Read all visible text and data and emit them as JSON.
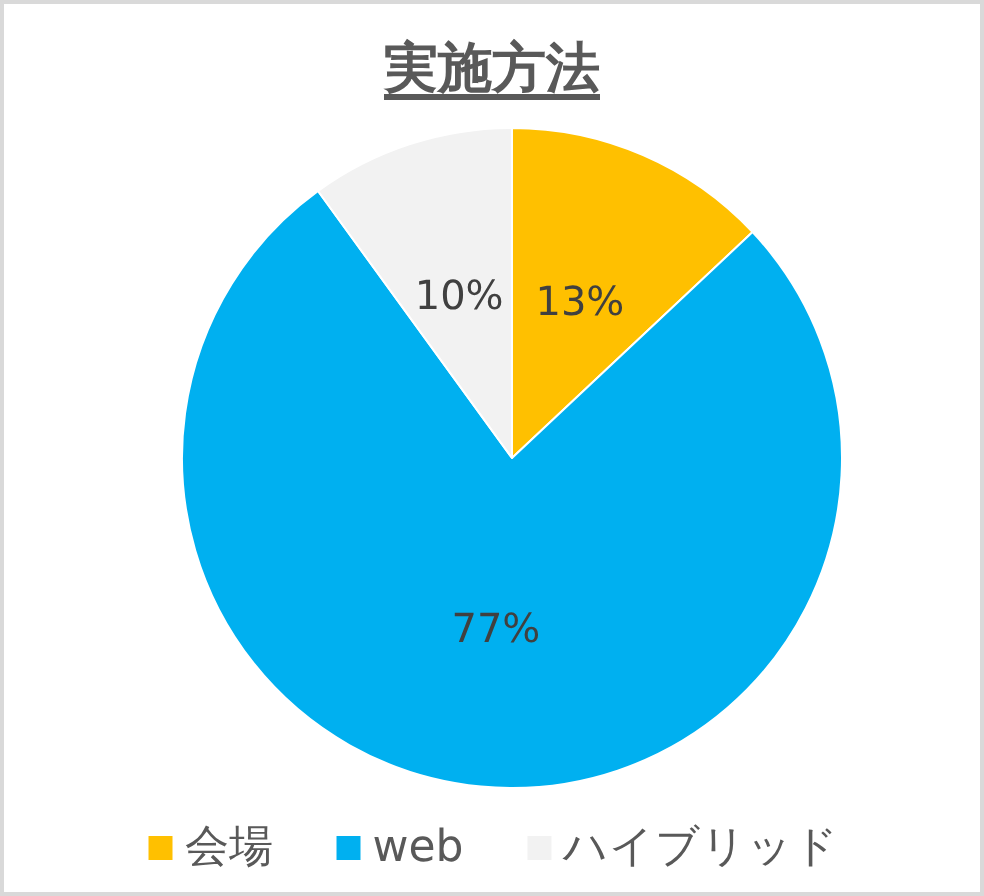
{
  "chart_data": {
    "type": "pie",
    "title": "実施方法",
    "categories": [
      "会場",
      "web",
      "ハイブリッド"
    ],
    "values": [
      13,
      77,
      10
    ],
    "colors": [
      "#ffc000",
      "#00b0f0",
      "#f2f2f2"
    ],
    "value_labels": [
      "13%",
      "77%",
      "10%"
    ],
    "legend": "bottom"
  }
}
